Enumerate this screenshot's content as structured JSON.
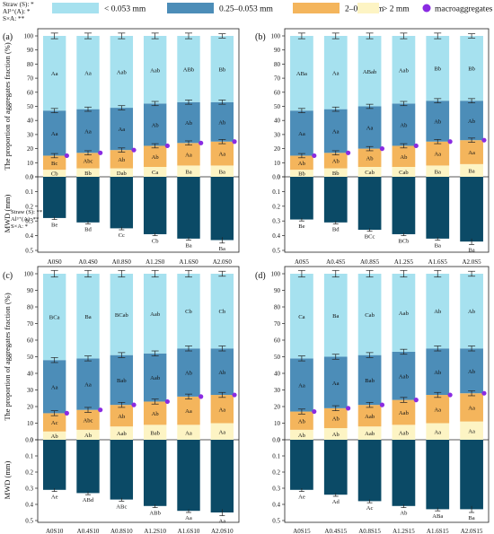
{
  "colors": {
    "lt0053": "#a6e1ef",
    "r0250053": "#4c8db8",
    "r2025": "#f4b55c",
    "gt2": "#fdf4c4",
    "macro": "#8a2be2",
    "mwd": "#0b4a66"
  },
  "legend": {
    "top_stats": [
      "Straw (S): *",
      "Al³⁺(A): *",
      "S×A: **"
    ],
    "items": [
      {
        "key": "lt0053",
        "label": "< 0.053 mm"
      },
      {
        "key": "r0250053",
        "label": "0.25–0.053 mm"
      },
      {
        "key": "r2025",
        "label": "2–0.25 mm"
      },
      {
        "key": "gt2",
        "label": "> 2 mm"
      },
      {
        "key": "macro",
        "label": "macroaggregates"
      }
    ]
  },
  "chart_data": [
    {
      "type": "bar",
      "panel": "(a)",
      "ylabel_top": "The proportion of aggregates fraction (%)",
      "ylabel_bottom": "MWD (mm)",
      "ylim_top": [
        0,
        100
      ],
      "yticks_top": [
        "0",
        "10",
        "20",
        "30",
        "40",
        "50",
        "60",
        "70",
        "80",
        "90",
        "100"
      ],
      "ylim_bottom": [
        0,
        0.5
      ],
      "yticks_bottom": [
        "0.0",
        "0.1",
        "0.2",
        "0.3",
        "0.4",
        "0.5"
      ],
      "stats": [
        "Straw (S): **",
        "Al³⁺(A): **",
        "S×A: *"
      ],
      "categories": [
        "A0S0",
        "A0.4S0",
        "A0.8S0",
        "A1.2S0",
        "A1.6S0",
        "A2.0S0"
      ],
      "series": [
        {
          "key": "gt2",
          "values": [
            5,
            6,
            6,
            7,
            8,
            8
          ],
          "labels": [
            "Cb",
            "Bb",
            "Dab",
            "Ca",
            "Ba",
            "Ba"
          ]
        },
        {
          "key": "r2025",
          "values": [
            10,
            11,
            13,
            15,
            16,
            17
          ],
          "labels": [
            "Bc",
            "Abc",
            "Ab",
            "Ab",
            "Aa",
            "Aa"
          ]
        },
        {
          "key": "r0250053",
          "values": [
            32,
            31,
            30,
            30,
            29,
            28
          ],
          "labels": [
            "Aa",
            "Aa",
            "Aa",
            "Ab",
            "Ab",
            "Ab"
          ]
        },
        {
          "key": "lt0053",
          "values": [
            53,
            52,
            51,
            48,
            47,
            47
          ],
          "labels": [
            "Aa",
            "Aa",
            "Aab",
            "Aab",
            "ABb",
            "Bb"
          ]
        }
      ],
      "totals_err": [
        2,
        2,
        2,
        2,
        2,
        1.5
      ],
      "boundary_err": [
        1.5,
        1.5,
        1.5,
        1.5,
        1.5,
        1.5
      ],
      "macroaggregates": [
        15,
        17,
        19,
        22,
        24,
        25
      ],
      "mwd": [
        0.28,
        0.31,
        0.35,
        0.39,
        0.42,
        0.43
      ],
      "mwd_err": [
        0.01,
        0.01,
        0.01,
        0.01,
        0.01,
        0.02
      ],
      "mwd_labels": [
        "Be",
        "Bd",
        "Cc",
        "Cb",
        "Ba",
        "Ba"
      ]
    },
    {
      "type": "bar",
      "panel": "(b)",
      "ylim_top": [
        0,
        100
      ],
      "yticks_top": [
        "0",
        "10",
        "20",
        "30",
        "40",
        "50",
        "60",
        "70",
        "80",
        "90",
        "100"
      ],
      "ylim_bottom": [
        0,
        0.5
      ],
      "yticks_bottom": [
        "0.0",
        "0.1",
        "0.2",
        "0.3",
        "0.4",
        "0.5"
      ],
      "categories": [
        "A0S5",
        "A0.4S5",
        "A0.8S5",
        "A1.2S5",
        "A1.6S5",
        "A2.0S5"
      ],
      "series": [
        {
          "key": "gt2",
          "values": [
            5,
            6,
            7,
            7,
            8,
            9
          ],
          "labels": [
            "Bb",
            "Bb",
            "Cab",
            "Cab",
            "Ba",
            "Ba"
          ]
        },
        {
          "key": "r2025",
          "values": [
            10,
            11,
            13,
            15,
            17,
            17
          ],
          "labels": [
            "Ab",
            "Ab",
            "Ab",
            "Ab",
            "Aa",
            "Aa"
          ]
        },
        {
          "key": "r0250053",
          "values": [
            32,
            31,
            30,
            30,
            29,
            28
          ],
          "labels": [
            "Aa",
            "Aa",
            "Aa",
            "Ab",
            "Ab",
            "Ab"
          ]
        },
        {
          "key": "lt0053",
          "values": [
            53,
            52,
            50,
            48,
            46,
            46
          ],
          "labels": [
            "ABa",
            "Aa",
            "ABab",
            "Aab",
            "Bb",
            "Bb"
          ]
        }
      ],
      "totals_err": [
        2,
        2,
        2,
        2,
        2,
        1.5
      ],
      "boundary_err": [
        1.5,
        1.5,
        1.5,
        1.5,
        1.5,
        1.5
      ],
      "macroaggregates": [
        15,
        17,
        20,
        22,
        25,
        26
      ],
      "mwd": [
        0.29,
        0.31,
        0.36,
        0.39,
        0.42,
        0.44
      ],
      "mwd_err": [
        0.01,
        0.01,
        0.01,
        0.01,
        0.01,
        0.02
      ],
      "mwd_labels": [
        "Be",
        "Bd",
        "BCc",
        "BCb",
        "Ba",
        "Ba"
      ]
    },
    {
      "type": "bar",
      "panel": "(c)",
      "ylabel_top": "The proportion of aggregates fraction (%)",
      "ylabel_bottom": "MWD (mm)",
      "ylim_top": [
        0,
        100
      ],
      "yticks_top": [
        "0",
        "10",
        "20",
        "30",
        "40",
        "50",
        "60",
        "70",
        "80",
        "90",
        "100"
      ],
      "ylim_bottom": [
        0,
        0.5
      ],
      "yticks_bottom": [
        "0.0",
        "0.1",
        "0.2",
        "0.3",
        "0.4",
        "0.5"
      ],
      "categories": [
        "A0S10",
        "A0.4S10",
        "A0.8S10",
        "A1.2S10",
        "A1.6S10",
        "A2.0S10"
      ],
      "series": [
        {
          "key": "gt2",
          "values": [
            5,
            6,
            8,
            9,
            9,
            10
          ],
          "labels": [
            "Ab",
            "Ab",
            "Aab",
            "Bab",
            "Aa",
            "Aa"
          ]
        },
        {
          "key": "r2025",
          "values": [
            11,
            12,
            13,
            14,
            17,
            17
          ],
          "labels": [
            "Ac",
            "Abc",
            "Ab",
            "Ab",
            "Aa",
            "Aa"
          ]
        },
        {
          "key": "r0250053",
          "values": [
            32,
            31,
            30,
            29,
            29,
            28
          ],
          "labels": [
            "Aa",
            "Aa",
            "Bab",
            "Aab",
            "Ab",
            "Ab"
          ]
        },
        {
          "key": "lt0053",
          "values": [
            52,
            51,
            49,
            48,
            45,
            45
          ],
          "labels": [
            "BCa",
            "Ba",
            "BCab",
            "Aab",
            "Cb",
            "Cb"
          ]
        }
      ],
      "totals_err": [
        2,
        2,
        2,
        2,
        2,
        1.5
      ],
      "boundary_err": [
        1.5,
        1.5,
        1.5,
        1.5,
        1.5,
        1.5
      ],
      "macroaggregates": [
        16,
        18,
        21,
        23,
        26,
        27
      ],
      "mwd": [
        0.31,
        0.33,
        0.37,
        0.41,
        0.44,
        0.45
      ],
      "mwd_err": [
        0.01,
        0.01,
        0.01,
        0.01,
        0.01,
        0.02
      ],
      "mwd_labels": [
        "Ae",
        "ABd",
        "ABc",
        "ABb",
        "Aa",
        "Aa"
      ]
    },
    {
      "type": "bar",
      "panel": "(d)",
      "ylim_top": [
        0,
        100
      ],
      "yticks_top": [
        "0",
        "10",
        "20",
        "30",
        "40",
        "50",
        "60",
        "70",
        "80",
        "90",
        "100"
      ],
      "ylim_bottom": [
        0,
        0.5
      ],
      "yticks_bottom": [
        "0.0",
        "0.1",
        "0.2",
        "0.3",
        "0.4",
        "0.5"
      ],
      "categories": [
        "A0S15",
        "A0.4S15",
        "A0.8S15",
        "A1.2S15",
        "A1.6S15",
        "A2.0S15"
      ],
      "series": [
        {
          "key": "gt2",
          "values": [
            6,
            7,
            8,
            9,
            10,
            11
          ],
          "labels": [
            "Ab",
            "Ab",
            "Aab",
            "Aab",
            "Aa",
            "Aa"
          ]
        },
        {
          "key": "r2025",
          "values": [
            11,
            12,
            13,
            15,
            17,
            17
          ],
          "labels": [
            "Ab",
            "Ab",
            "Aab",
            "Aab",
            "Aa",
            "Aa"
          ]
        },
        {
          "key": "r0250053",
          "values": [
            32,
            31,
            30,
            29,
            28,
            27
          ],
          "labels": [
            "Aa",
            "Aa",
            "Bab",
            "Aab",
            "Ab",
            "Ab"
          ]
        },
        {
          "key": "lt0053",
          "values": [
            51,
            50,
            49,
            47,
            45,
            45
          ],
          "labels": [
            "Ca",
            "Ba",
            "Cab",
            "Aab",
            "Ab",
            "Ab"
          ]
        }
      ],
      "totals_err": [
        2,
        2,
        2,
        2,
        2,
        1.5
      ],
      "boundary_err": [
        1.5,
        1.5,
        1.5,
        1.5,
        1.5,
        1.5
      ],
      "macroaggregates": [
        17,
        19,
        21,
        24,
        27,
        28
      ],
      "mwd": [
        0.31,
        0.34,
        0.38,
        0.41,
        0.43,
        0.43
      ],
      "mwd_err": [
        0.01,
        0.01,
        0.01,
        0.01,
        0.01,
        0.02
      ],
      "mwd_labels": [
        "Ae",
        "Ad",
        "Ac",
        "Ab",
        "ABa",
        "Ba"
      ]
    }
  ]
}
